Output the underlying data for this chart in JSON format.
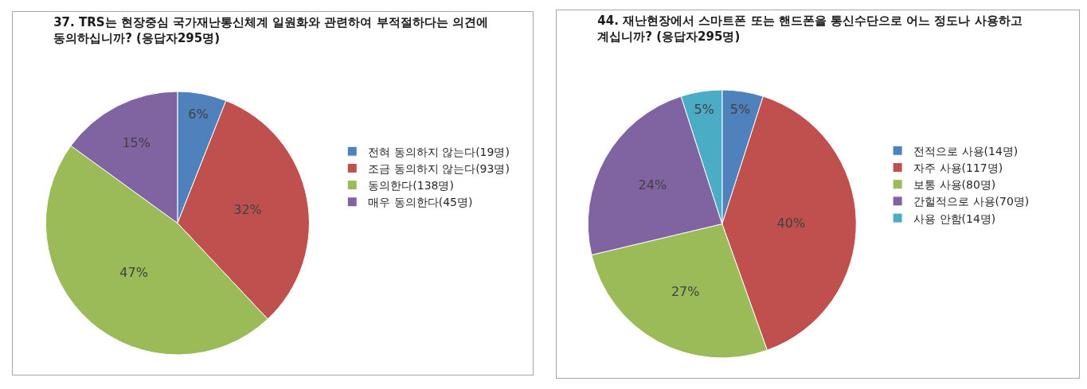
{
  "chart_data": [
    {
      "type": "pie",
      "title": "37. TRS는 현장중심 국가재난통신체계 일원화와 관련하여 부적절하다는 의견에 동의하십니까? (응답자295명)",
      "categories": [
        "전혀 동의하지 않는다(19명)",
        "조금 동의하지 않는다(93명)",
        "동의한다(138명)",
        "매우 동의한다(45명)"
      ],
      "values": [
        6,
        32,
        47,
        15
      ],
      "value_labels": [
        "6%",
        "32%",
        "47%",
        "15%"
      ],
      "colors": [
        "#4f81bd",
        "#c0504d",
        "#9bbb59",
        "#8064a2"
      ],
      "legend": "right"
    },
    {
      "type": "pie",
      "title": "44. 재난현장에서 스마트폰 또는 핸드폰을 통신수단으로 어느 정도나 사용하고 계십니까? (응답자295명)",
      "categories": [
        "전적으로 사용(14명)",
        "자주 사용(117명)",
        "보통 사용(80명)",
        "간헐적으로 사용(70명)",
        "사용 안함(14명)"
      ],
      "values": [
        5,
        40,
        27,
        24,
        5
      ],
      "value_labels": [
        "5%",
        "40%",
        "27%",
        "24%",
        "5%"
      ],
      "colors": [
        "#4f81bd",
        "#c0504d",
        "#9bbb59",
        "#8064a2",
        "#4bacc6"
      ],
      "legend": "right"
    }
  ]
}
